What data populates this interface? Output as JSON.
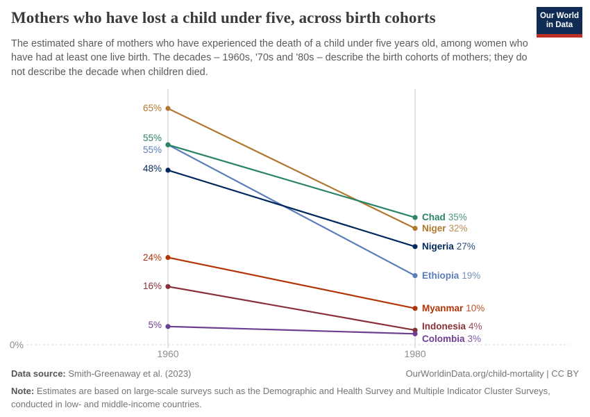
{
  "header": {
    "title": "Mothers who have lost a child under five, across birth cohorts",
    "subtitle": "The estimated share of mothers who have experienced the death of a child under five years old, among women who have had at least one live birth. The decades – 1960s, '70s and '80s – describe the birth cohorts of mothers; they do not describe the decade when children died.",
    "logo_line1": "Our World",
    "logo_line2": "in Data",
    "logo_navy": "#102c54",
    "logo_red": "#be2e23"
  },
  "chart_data": {
    "type": "line",
    "x": [
      1960,
      1980
    ],
    "x_tick_labels": {
      "left": "1960",
      "right": "1980"
    },
    "baseline_label": "0%",
    "ylim": [
      0,
      70
    ],
    "grid": "baseline-dashed-only",
    "legend_position": "labels-at-line-ends",
    "series": [
      {
        "name": "Niger",
        "color": "#B0772F",
        "values": [
          65,
          32
        ],
        "start_label": "65%",
        "end_label": "32%"
      },
      {
        "name": "Ethiopia",
        "color": "#5B7EB9",
        "values": [
          55,
          19
        ],
        "start_label": "55%",
        "end_label": "19%"
      },
      {
        "name": "Chad",
        "color": "#2C8465",
        "values": [
          55,
          35
        ],
        "start_label": "55%",
        "end_label": "35%"
      },
      {
        "name": "Nigeria",
        "color": "#00295B",
        "values": [
          48,
          27
        ],
        "start_label": "48%",
        "end_label": "27%"
      },
      {
        "name": "Myanmar",
        "color": "#B13507",
        "values": [
          24,
          10
        ],
        "start_label": "24%",
        "end_label": "10%"
      },
      {
        "name": "Indonesia",
        "color": "#883039",
        "values": [
          16,
          4
        ],
        "start_label": "16%",
        "end_label": "4%"
      },
      {
        "name": "Colombia",
        "color": "#6D3E91",
        "values": [
          5,
          3
        ],
        "start_label": "5%",
        "end_label": "3%"
      }
    ]
  },
  "footer": {
    "source_label": "Data source:",
    "source_text": " Smith-Greenaway et al. (2023)",
    "link_text": "OurWorldinData.org/child-mortality | CC BY",
    "note_label": "Note:",
    "note_text": " Estimates are based on large-scale surveys such as the Demographic and Health Survey and Multiple Indicator Cluster Surveys, conducted in low- and middle-income countries."
  }
}
